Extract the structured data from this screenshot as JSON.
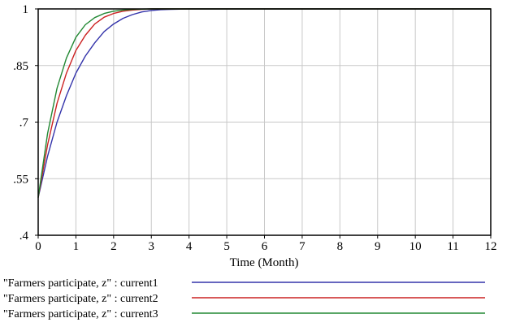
{
  "chart_data": {
    "type": "line",
    "title": "",
    "xlabel": "Time (Month)",
    "ylabel": "",
    "xlim": [
      0,
      12
    ],
    "ylim": [
      0.4,
      1.0
    ],
    "x_ticks": [
      0,
      1,
      2,
      3,
      4,
      5,
      6,
      7,
      8,
      9,
      10,
      11,
      12
    ],
    "x_tick_labels": [
      "0",
      "1",
      "2",
      "3",
      "4",
      "5",
      "6",
      "7",
      "8",
      "9",
      "10",
      "11",
      "12"
    ],
    "y_ticks": [
      0.4,
      0.55,
      0.7,
      0.85,
      1.0
    ],
    "y_tick_labels": [
      ".4",
      ".55",
      ".7",
      ".85",
      "1"
    ],
    "grid": true,
    "legend_position": "bottom",
    "series": [
      {
        "name": "\"Farmers participate, z\" : current1",
        "color": "#3333aa",
        "x": [
          0,
          0.25,
          0.5,
          0.75,
          1,
          1.25,
          1.5,
          1.75,
          2,
          2.25,
          2.5,
          2.75,
          3,
          3.25,
          3.5,
          4,
          5,
          6,
          7,
          8,
          9,
          10,
          11,
          12
        ],
        "y": [
          0.5,
          0.61,
          0.7,
          0.77,
          0.83,
          0.875,
          0.91,
          0.94,
          0.96,
          0.975,
          0.985,
          0.992,
          0.996,
          0.998,
          0.999,
          1.0,
          1.0,
          1.0,
          1.0,
          1.0,
          1.0,
          1.0,
          1.0,
          1.0
        ]
      },
      {
        "name": "\"Farmers participate, z\" : current2",
        "color": "#cc2222",
        "x": [
          0,
          0.25,
          0.5,
          0.75,
          1,
          1.25,
          1.5,
          1.75,
          2,
          2.25,
          2.5,
          2.75,
          3,
          3.5,
          4,
          5,
          6,
          7,
          8,
          9,
          10,
          11,
          12
        ],
        "y": [
          0.5,
          0.64,
          0.75,
          0.83,
          0.89,
          0.93,
          0.96,
          0.978,
          0.988,
          0.994,
          0.997,
          0.999,
          1.0,
          1.0,
          1.0,
          1.0,
          1.0,
          1.0,
          1.0,
          1.0,
          1.0,
          1.0,
          1.0
        ]
      },
      {
        "name": "\"Farmers participate, z\" : current3",
        "color": "#228833",
        "x": [
          0,
          0.25,
          0.5,
          0.75,
          1,
          1.25,
          1.5,
          1.75,
          2,
          2.25,
          2.5,
          3,
          4,
          5,
          6,
          7,
          8,
          9,
          10,
          11,
          12
        ],
        "y": [
          0.5,
          0.67,
          0.79,
          0.87,
          0.925,
          0.958,
          0.977,
          0.988,
          0.994,
          0.997,
          0.999,
          1.0,
          1.0,
          1.0,
          1.0,
          1.0,
          1.0,
          1.0,
          1.0,
          1.0,
          1.0
        ]
      }
    ]
  }
}
